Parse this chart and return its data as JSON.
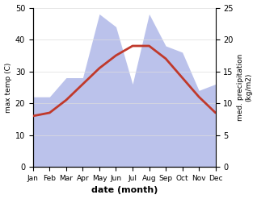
{
  "months": [
    "Jan",
    "Feb",
    "Mar",
    "Apr",
    "May",
    "Jun",
    "Jul",
    "Aug",
    "Sep",
    "Oct",
    "Nov",
    "Dec"
  ],
  "temperature": [
    16,
    17,
    21,
    26,
    31,
    35,
    38,
    38,
    34,
    28,
    22,
    17
  ],
  "precipitation": [
    11,
    11,
    14,
    14,
    24,
    22,
    13,
    24,
    19,
    18,
    12,
    13
  ],
  "temp_color": "#c0392b",
  "precip_color_fill": "#b0b8e8",
  "temp_ylim": [
    0,
    50
  ],
  "precip_ylim": [
    0,
    25
  ],
  "temp_yticks": [
    0,
    10,
    20,
    30,
    40,
    50
  ],
  "precip_yticks": [
    0,
    5,
    10,
    15,
    20,
    25
  ],
  "xlabel": "date (month)",
  "ylabel_left": "max temp (C)",
  "ylabel_right": "med. precipitation\n(kg/m2)"
}
